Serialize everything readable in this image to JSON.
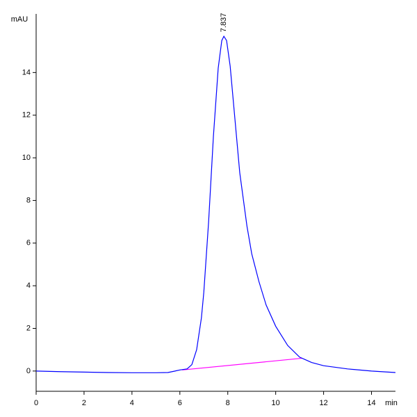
{
  "chart_data": {
    "type": "line",
    "x_label": "min",
    "y_label": "mAU",
    "xlim": [
      0,
      15
    ],
    "ylim": [
      -0.95,
      16.75
    ],
    "xticks": [
      0,
      2,
      4,
      6,
      8,
      10,
      12,
      14
    ],
    "yticks": [
      0,
      2,
      4,
      6,
      8,
      10,
      12,
      14
    ],
    "x": [
      0,
      1,
      2,
      3,
      4,
      5,
      5.5,
      5.8,
      6,
      6.3,
      6.5,
      6.7,
      6.9,
      7.0,
      7.2,
      7.4,
      7.6,
      7.75,
      7.837,
      7.95,
      8.1,
      8.3,
      8.5,
      8.8,
      9.0,
      9.3,
      9.6,
      10.0,
      10.5,
      11.0,
      11.2,
      11.5,
      12,
      13,
      14,
      15
    ],
    "series": [
      {
        "color": "#0000ff",
        "values": [
          0,
          -0.03,
          -0.05,
          -0.07,
          -0.08,
          -0.08,
          -0.07,
          0,
          0.05,
          0.1,
          0.3,
          1.0,
          2.5,
          3.7,
          7,
          11,
          14.2,
          15.5,
          15.7,
          15.5,
          14.3,
          11.8,
          9.3,
          6.8,
          5.5,
          4.2,
          3.1,
          2.1,
          1.2,
          0.65,
          0.55,
          0.4,
          0.25,
          0.1,
          0.0,
          -0.07
        ]
      }
    ],
    "baseline": {
      "color": "#ff00ff",
      "x": [
        6.1,
        11.1
      ],
      "values": [
        0.05,
        0.6
      ]
    },
    "annotations": [
      {
        "text": "7.837",
        "x": 7.837,
        "y": 15.7
      }
    ]
  }
}
